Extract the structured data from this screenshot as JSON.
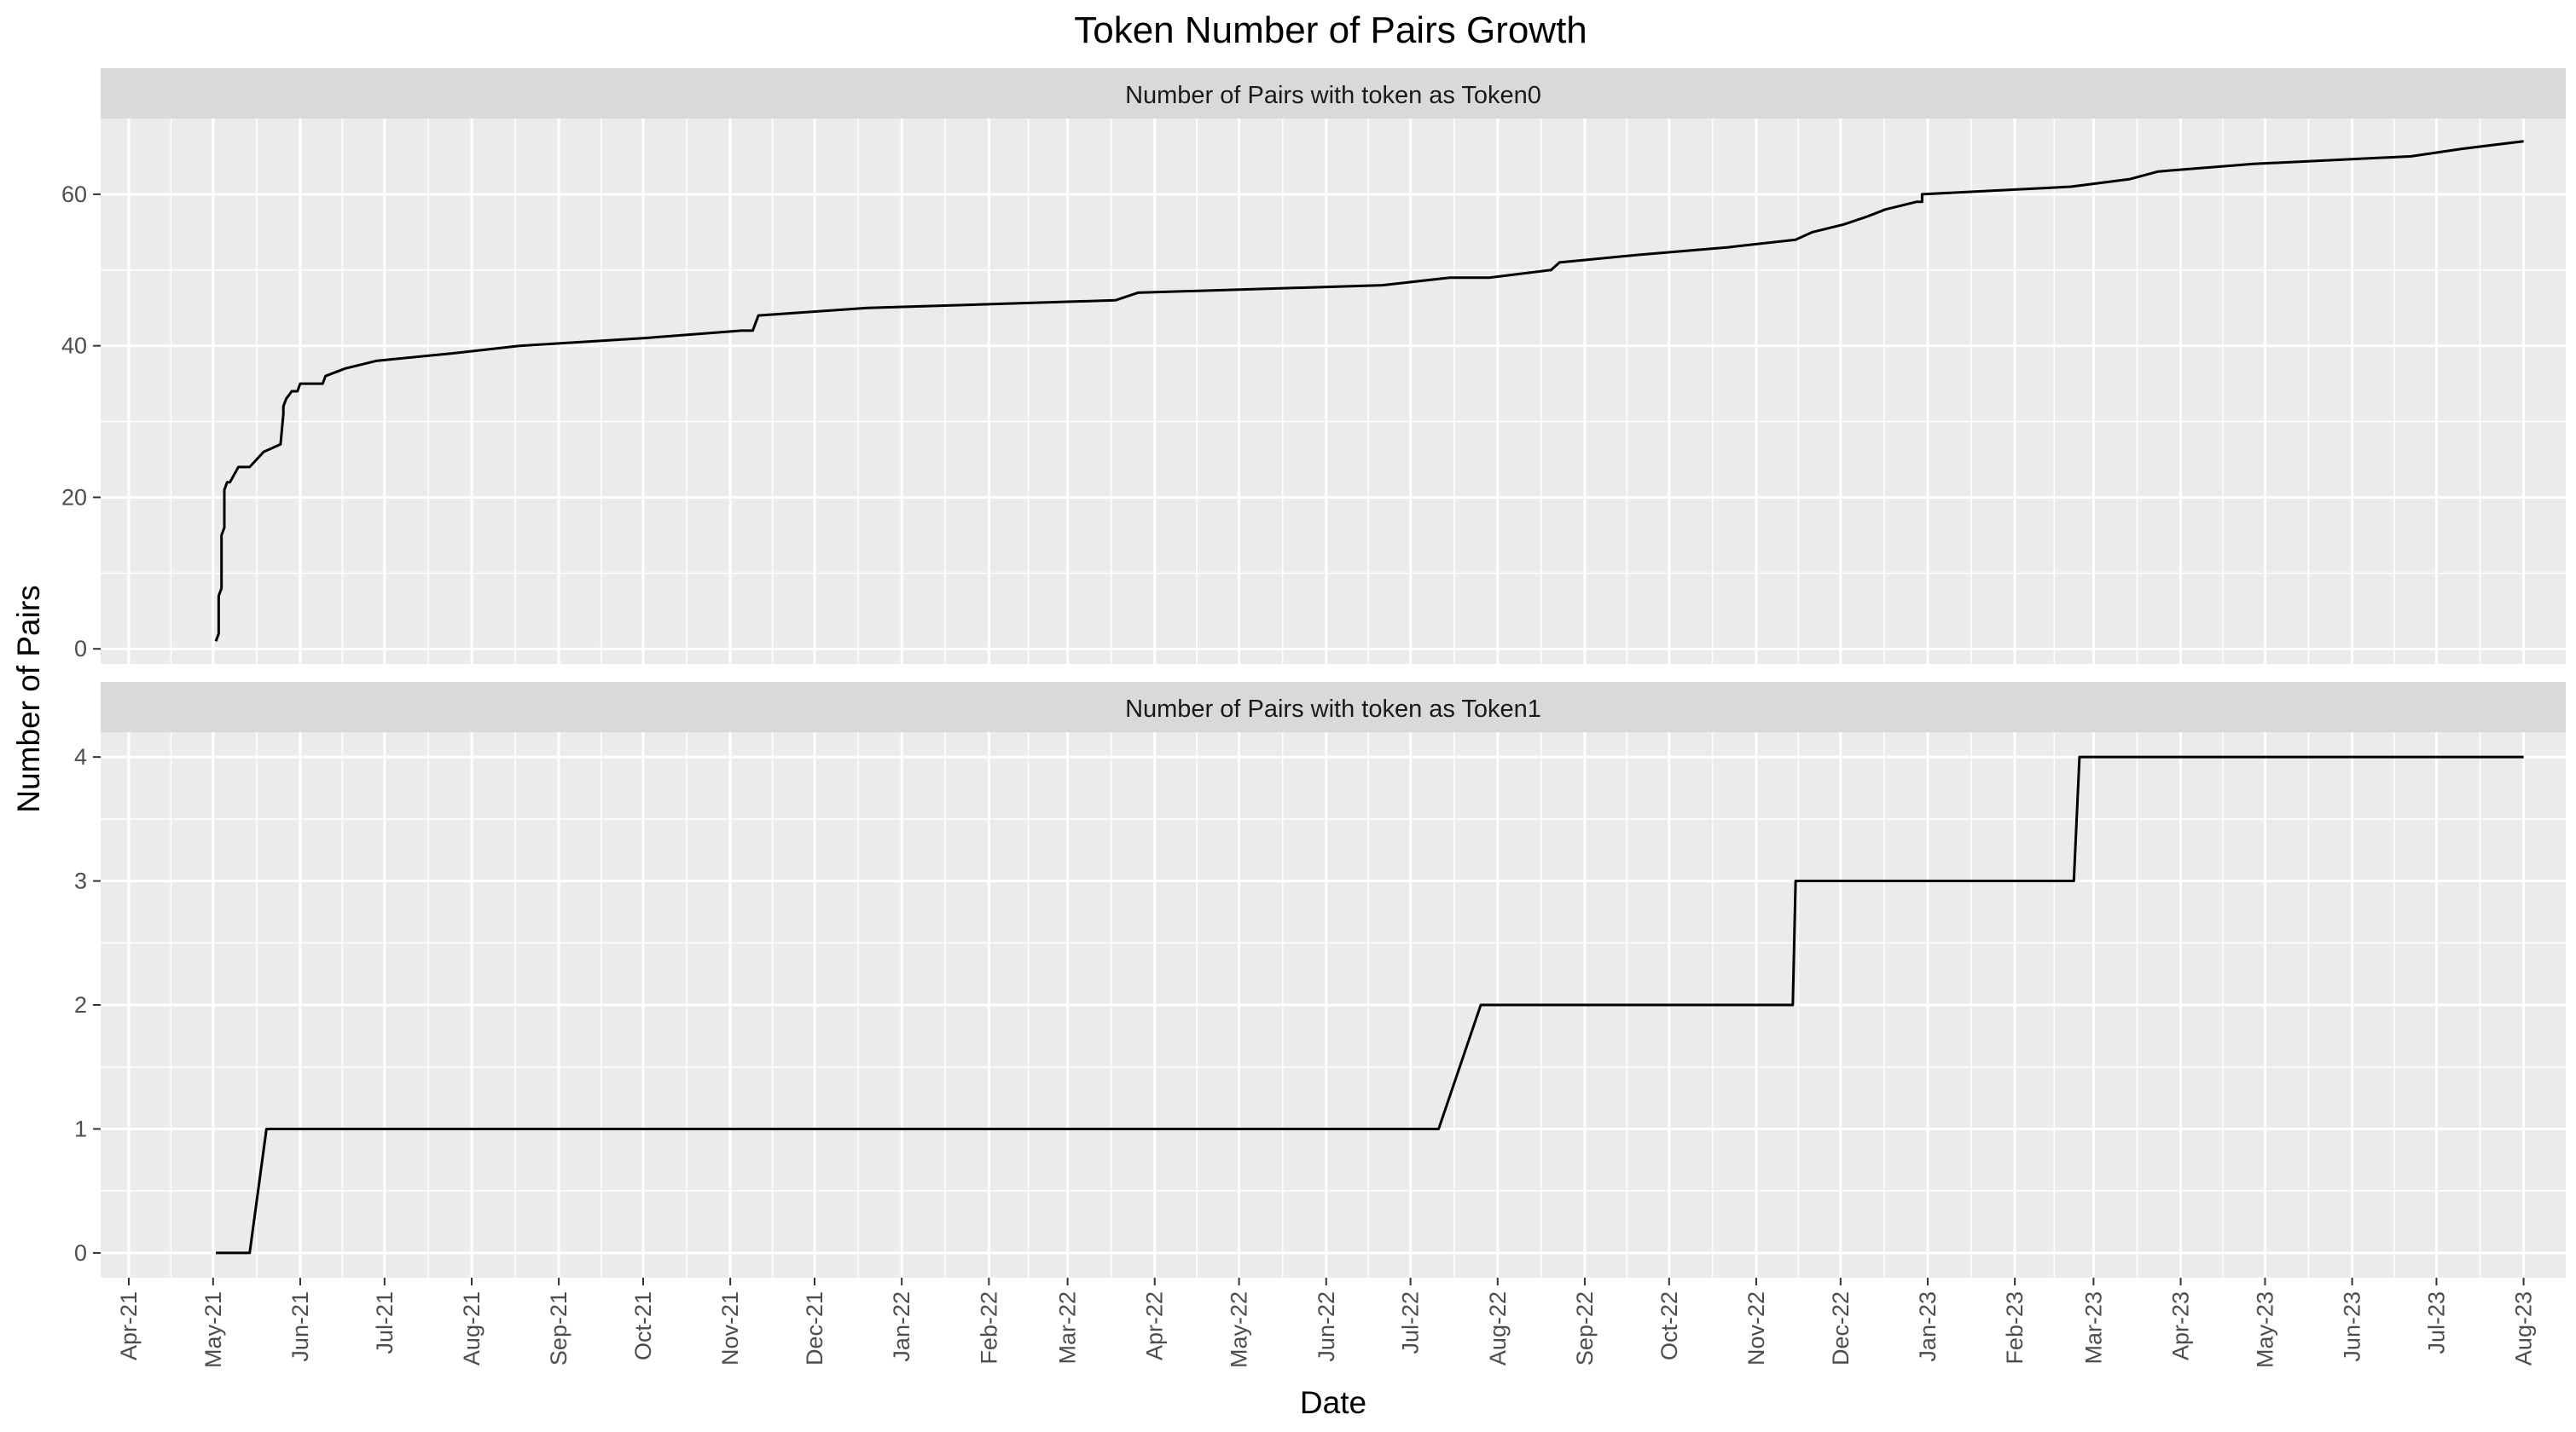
{
  "chart_data": {
    "type": "line",
    "title": "Token Number of Pairs Growth",
    "xlabel": "Date",
    "ylabel": "Number of Pairs",
    "grid": true,
    "x_ticks": [
      "Apr-21",
      "May-21",
      "Jun-21",
      "Jul-21",
      "Aug-21",
      "Sep-21",
      "Oct-21",
      "Nov-21",
      "Dec-21",
      "Jan-22",
      "Feb-22",
      "Mar-22",
      "Apr-22",
      "May-22",
      "Jun-22",
      "Jul-22",
      "Aug-22",
      "Sep-22",
      "Oct-22",
      "Nov-22",
      "Dec-22",
      "Jan-23",
      "Feb-23",
      "Mar-23",
      "Apr-23",
      "May-23",
      "Jun-23",
      "Jul-23",
      "Aug-23"
    ],
    "xlim": [
      "2021-03-22",
      "2023-08-16"
    ],
    "panels": [
      {
        "strip": "Number of Pairs with token as Token0",
        "ylim": [
          -2,
          70
        ],
        "y_ticks": [
          0,
          20,
          40,
          60
        ],
        "series": [
          {
            "x": [
              "2021-05-02",
              "2021-05-03",
              "2021-05-03",
              "2021-05-04",
              "2021-05-04",
              "2021-05-05",
              "2021-05-05",
              "2021-05-06",
              "2021-05-07",
              "2021-05-10",
              "2021-05-13",
              "2021-05-14",
              "2021-05-19",
              "2021-05-25",
              "2021-05-26",
              "2021-05-26",
              "2021-05-27",
              "2021-05-29",
              "2021-05-31",
              "2021-06-01",
              "2021-06-09",
              "2021-06-10",
              "2021-06-17",
              "2021-06-28",
              "2021-07-25",
              "2021-08-18",
              "2021-10-01",
              "2021-11-05",
              "2021-11-09",
              "2021-11-11",
              "2021-12-20",
              "2022-03-18",
              "2022-03-26",
              "2022-06-21",
              "2022-07-15",
              "2022-07-26",
              "2022-07-29",
              "2022-08-20",
              "2022-08-23",
              "2022-09-20",
              "2022-10-22",
              "2022-11-15",
              "2022-11-21",
              "2022-12-02",
              "2022-12-10",
              "2022-12-17",
              "2022-12-28",
              "2022-12-30",
              "2022-12-30",
              "2023-02-21",
              "2023-03-14",
              "2023-03-24",
              "2023-04-27",
              "2023-06-22",
              "2023-07-10",
              "2023-08-01"
            ],
            "values": [
              1,
              2,
              7,
              8,
              15,
              16,
              21,
              22,
              22,
              24,
              24,
              24,
              26,
              27,
              31,
              32,
              33,
              34,
              34,
              35,
              35,
              36,
              37,
              38,
              39,
              40,
              41,
              42,
              42,
              44,
              45,
              46,
              47,
              48,
              49,
              49,
              49,
              50,
              51,
              52,
              53,
              54,
              55,
              56,
              57,
              58,
              59,
              59,
              60,
              61,
              62,
              63,
              64,
              65,
              66,
              67
            ]
          }
        ]
      },
      {
        "strip": "Number of Pairs with token as Token1",
        "ylim": [
          -0.2,
          4.2
        ],
        "y_ticks": [
          0,
          1,
          2,
          3,
          4
        ],
        "series": [
          {
            "x": [
              "2021-05-02",
              "2021-05-14",
              "2021-05-20",
              "2022-07-11",
              "2022-07-26",
              "2022-11-14",
              "2022-11-15",
              "2023-02-22",
              "2023-02-24",
              "2023-08-01"
            ],
            "values": [
              0,
              0,
              1,
              1,
              2,
              2,
              3,
              3,
              4,
              4
            ]
          }
        ]
      }
    ]
  }
}
